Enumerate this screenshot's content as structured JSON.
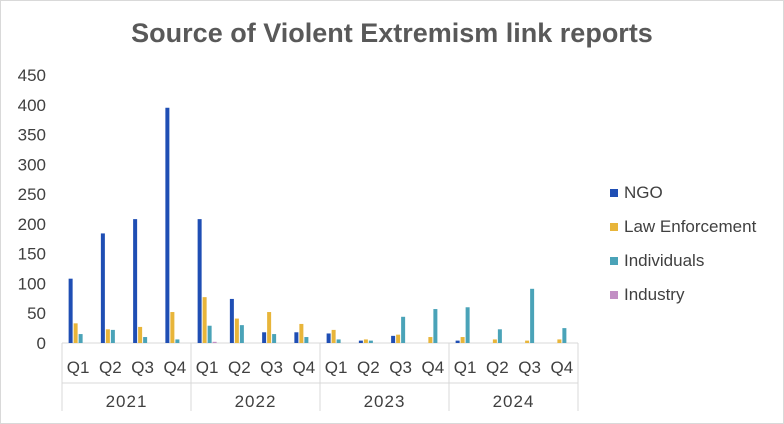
{
  "chart_data": {
    "type": "bar",
    "title": "Source of Violent Extremism link reports",
    "xlabel": "",
    "ylabel": "",
    "ylim": [
      0,
      450
    ],
    "yticks": [
      0,
      50,
      100,
      150,
      200,
      250,
      300,
      350,
      400,
      450
    ],
    "ytick_labels": [
      "0",
      "50",
      "100",
      "150",
      "200",
      "250",
      "300",
      "350",
      "400",
      "450"
    ],
    "categories": [
      "Q1",
      "Q2",
      "Q3",
      "Q4",
      "Q1",
      "Q2",
      "Q3",
      "Q4",
      "Q1",
      "Q2",
      "Q3",
      "Q4",
      "Q1",
      "Q2",
      "Q3",
      "Q4"
    ],
    "groups": [
      "2021",
      "2022",
      "2023",
      "2024"
    ],
    "grid": false,
    "legend_position": "right",
    "series": [
      {
        "name": "NGO",
        "color": "#1f4eb4",
        "values": [
          108,
          184,
          208,
          395,
          208,
          74,
          18,
          18,
          16,
          4,
          12,
          0,
          4,
          0,
          0,
          0
        ]
      },
      {
        "name": "Law Enforcement",
        "color": "#e8b53a",
        "values": [
          33,
          23,
          27,
          52,
          77,
          41,
          52,
          32,
          22,
          6,
          14,
          10,
          10,
          6,
          4,
          6
        ]
      },
      {
        "name": "Individuals",
        "color": "#4aa3b8",
        "values": [
          15,
          22,
          10,
          6,
          29,
          30,
          15,
          10,
          6,
          4,
          44,
          57,
          60,
          23,
          91,
          25
        ]
      },
      {
        "name": "Industry",
        "color": "#c28fc4",
        "values": [
          0,
          0,
          0,
          0,
          2,
          0,
          0,
          0,
          0,
          0,
          0,
          0,
          0,
          0,
          0,
          0
        ]
      }
    ]
  }
}
